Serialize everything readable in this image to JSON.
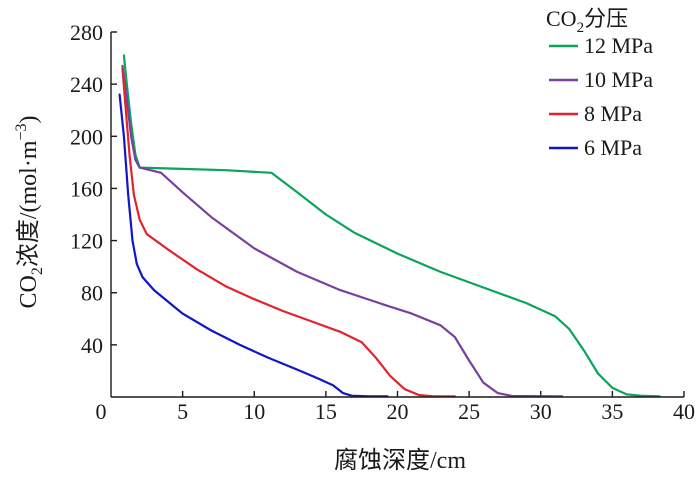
{
  "chart_data": {
    "type": "line",
    "xlabel": "腐蚀深度/cm",
    "ylabel": {
      "co": "CO",
      "co_sub": "2",
      "text": "浓度/(mol·m",
      "sup": "−3",
      "close": ")"
    },
    "legend_title": {
      "co": "CO",
      "co_sub": "2",
      "text": "分压"
    },
    "legend_placement": "top-right",
    "xlim": [
      0,
      40
    ],
    "ylim": [
      0,
      280
    ],
    "x_ticks": [
      0,
      5,
      10,
      15,
      20,
      25,
      30,
      35,
      40
    ],
    "y_ticks": [
      40,
      80,
      120,
      160,
      200,
      240,
      280
    ],
    "grid": false,
    "series": [
      {
        "name": "12 MPa",
        "color": "#0aa55a",
        "points": [
          [
            0.9,
            262
          ],
          [
            1.1,
            240
          ],
          [
            1.4,
            210
          ],
          [
            1.7,
            186
          ],
          [
            2.0,
            176
          ],
          [
            5,
            175
          ],
          [
            8,
            174
          ],
          [
            11.2,
            172
          ],
          [
            13,
            157
          ],
          [
            15,
            140
          ],
          [
            17,
            126
          ],
          [
            20,
            110
          ],
          [
            23,
            96
          ],
          [
            26,
            84
          ],
          [
            29,
            72
          ],
          [
            31,
            62
          ],
          [
            32,
            52
          ],
          [
            33,
            36
          ],
          [
            34,
            18
          ],
          [
            35,
            7
          ],
          [
            36,
            2
          ],
          [
            37,
            1
          ],
          [
            38.3,
            0.5
          ]
        ]
      },
      {
        "name": "10 MPa",
        "color": "#7b3fa0",
        "points": [
          [
            0.8,
            254
          ],
          [
            1.1,
            228
          ],
          [
            1.4,
            200
          ],
          [
            1.7,
            182
          ],
          [
            2.0,
            176
          ],
          [
            3.5,
            172
          ],
          [
            5,
            157
          ],
          [
            7,
            138
          ],
          [
            10,
            114
          ],
          [
            13,
            96
          ],
          [
            16,
            82
          ],
          [
            19,
            71
          ],
          [
            21,
            64
          ],
          [
            23,
            55
          ],
          [
            24,
            46
          ],
          [
            25,
            28
          ],
          [
            26,
            11
          ],
          [
            27,
            3
          ],
          [
            28,
            0.8
          ],
          [
            31.5,
            0.5
          ]
        ]
      },
      {
        "name": "8 MPa",
        "color": "#e3232b",
        "points": [
          [
            0.8,
            252
          ],
          [
            1.0,
            225
          ],
          [
            1.3,
            185
          ],
          [
            1.6,
            155
          ],
          [
            2.0,
            136
          ],
          [
            2.5,
            125
          ],
          [
            4,
            113
          ],
          [
            6,
            98
          ],
          [
            8,
            85
          ],
          [
            10,
            75
          ],
          [
            12,
            66
          ],
          [
            14,
            58
          ],
          [
            16,
            50
          ],
          [
            17.5,
            42
          ],
          [
            18.5,
            30
          ],
          [
            19.5,
            16
          ],
          [
            20.5,
            6
          ],
          [
            21.5,
            1.5
          ],
          [
            22.5,
            0.5
          ],
          [
            24,
            0.5
          ]
        ]
      },
      {
        "name": "6 MPa",
        "color": "#1116c7",
        "points": [
          [
            0.6,
            232
          ],
          [
            0.9,
            200
          ],
          [
            1.2,
            155
          ],
          [
            1.5,
            120
          ],
          [
            1.8,
            102
          ],
          [
            2.2,
            92
          ],
          [
            3,
            82
          ],
          [
            5,
            64
          ],
          [
            7,
            51
          ],
          [
            9,
            40
          ],
          [
            11,
            30
          ],
          [
            13,
            21
          ],
          [
            14.5,
            14
          ],
          [
            15.5,
            9
          ],
          [
            16.2,
            3
          ],
          [
            16.8,
            1
          ],
          [
            18,
            0.5
          ],
          [
            19.3,
            0.5
          ]
        ]
      }
    ]
  }
}
